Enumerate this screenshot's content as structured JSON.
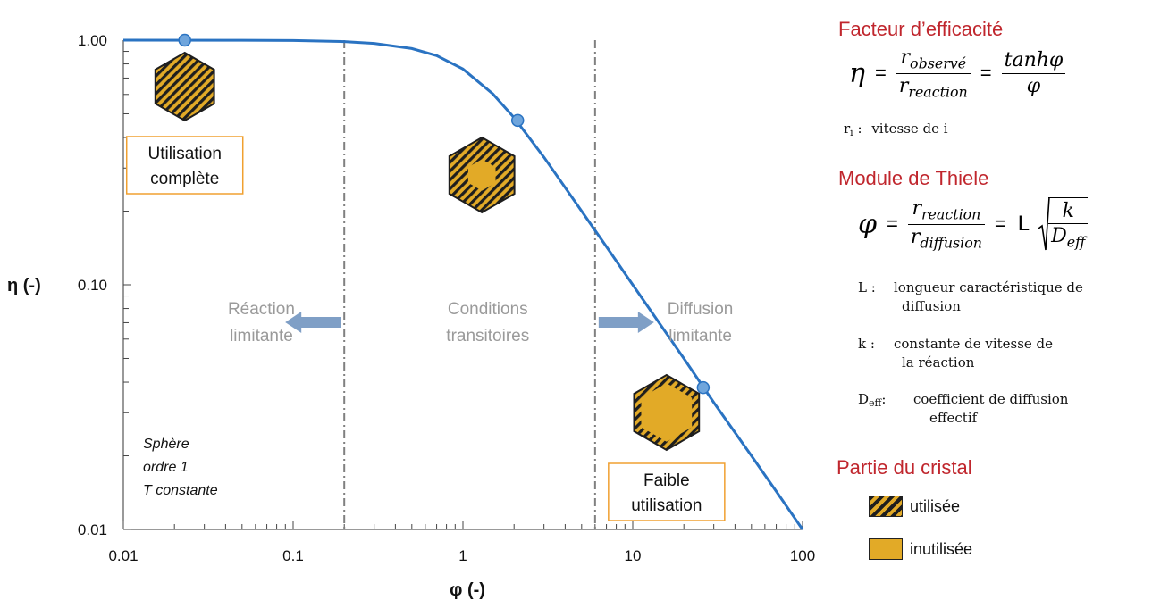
{
  "chart_data": {
    "type": "line",
    "xscale": "log",
    "yscale": "log",
    "xlabel": "φ (-)",
    "ylabel": "η (-)",
    "xlim": [
      0.01,
      100
    ],
    "ylim": [
      0.01,
      1.0
    ],
    "xticks": [
      "0.01",
      "0.1",
      "1",
      "10",
      "100"
    ],
    "yticks": [
      "0.01",
      "0.10",
      "1.00"
    ],
    "series": [
      {
        "color": "#2a73c2",
        "x": [
          0.01,
          0.05,
          0.1,
          0.2,
          0.3,
          0.5,
          0.7,
          1.0,
          1.5,
          2.0,
          3.0,
          5.0,
          7.0,
          10.0,
          20.0,
          30.0,
          50.0,
          70.0,
          100.0
        ],
        "y": [
          1.0,
          0.999,
          0.997,
          0.987,
          0.97,
          0.924,
          0.865,
          0.762,
          0.603,
          0.482,
          0.332,
          0.2,
          0.143,
          0.1,
          0.05,
          0.033,
          0.02,
          0.0143,
          0.01
        ]
      }
    ],
    "highlight_points": [
      {
        "x": 0.023,
        "y": 1.0
      },
      {
        "x": 2.1,
        "y": 0.47
      },
      {
        "x": 26,
        "y": 0.038
      }
    ],
    "vlines": [
      {
        "x": 0.2,
        "style": "dash-dot",
        "color": "#808080"
      },
      {
        "x": 6,
        "style": "dash-dot",
        "color": "#808080"
      }
    ],
    "regions": [
      {
        "lines": [
          "Réaction",
          "limitante"
        ],
        "arrow": "left"
      },
      {
        "lines": [
          "Conditions",
          "transitoires"
        ],
        "arrow": "none"
      },
      {
        "lines": [
          "Diffusion",
          "limitante"
        ],
        "arrow": "right"
      }
    ],
    "annotations": {
      "box_complete": [
        "Utilisation",
        "complète"
      ],
      "box_low": [
        "Faible",
        "utilisation"
      ],
      "conditions": [
        "Sphère",
        "ordre 1",
        "T constante"
      ]
    },
    "crystal_icons": [
      {
        "state": "fully-used",
        "near_x": 0.023
      },
      {
        "state": "shell-used",
        "near_x": 2.1
      },
      {
        "state": "thin-shell-used",
        "near_x": 26
      }
    ],
    "colors": {
      "curve": "#2a73c2",
      "point": "#6fa5dc",
      "box_border": "#f0a030",
      "region_text": "#9a9a9a",
      "arrow": "#7f9fc6",
      "hatch_dark": "#1e1e1e",
      "hatch_gold": "#e2aa27"
    }
  },
  "panel": {
    "efficacite": {
      "title": "Facteur d’efficacité",
      "eta": "η",
      "num1": "r",
      "num1_sub": "observé",
      "den1": "r",
      "den1_sub": "reaction",
      "num2": "tanhφ",
      "den2": "φ",
      "eq": "=",
      "def_key": "r",
      "def_key_sub": "i",
      "def_colon": ":",
      "def_val": "vitesse de i"
    },
    "thiele": {
      "title": "Module de Thiele",
      "phi": "φ",
      "num1": "r",
      "num1_sub": "reaction",
      "den1": "r",
      "den1_sub": "diffusion",
      "eq": "=",
      "L": "L",
      "k": "k",
      "D": "D",
      "D_sub": "eff",
      "defs": [
        {
          "key": "L :",
          "lines": [
            "longueur caractéristique de",
            "diffusion"
          ]
        },
        {
          "key": "k :",
          "lines": [
            "constante de vitesse de",
            "la réaction"
          ]
        },
        {
          "key_main": "D",
          "key_sub": "eff",
          "key_colon": ":",
          "lines": [
            "coefficient de diffusion",
            "effectif"
          ]
        }
      ]
    },
    "cristal": {
      "title": "Partie du cristal",
      "used": "utilisée",
      "unused": "inutilisée"
    }
  }
}
